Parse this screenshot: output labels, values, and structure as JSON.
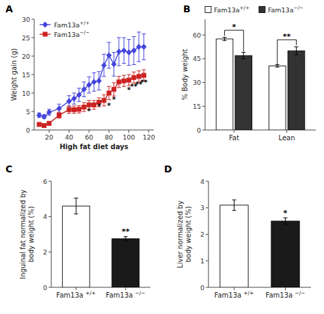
{
  "chart_data": [
    {
      "type": "line",
      "title": "A",
      "x": [
        10,
        15,
        20,
        30,
        40,
        45,
        50,
        55,
        60,
        65,
        70,
        75,
        80,
        85,
        90,
        95,
        100,
        105,
        110,
        115
      ],
      "xlabel": "High fat diet days",
      "ylabel": "Weight gain (g)",
      "xlim": [
        5,
        125
      ],
      "ylim": [
        0,
        30
      ],
      "xticks": [
        20,
        40,
        60,
        80,
        100,
        120
      ],
      "yticks": [
        0,
        5,
        10,
        15,
        20,
        25,
        30
      ],
      "grid": false,
      "legend": "upper left",
      "series": [
        {
          "name": "Fam13a+/+",
          "color": "#4444DD",
          "marker": "diamond",
          "values": [
            4.0,
            3.6,
            4.8,
            5.8,
            7.8,
            8.5,
            9.5,
            11.0,
            12.2,
            13.0,
            13.3,
            17.5,
            20.2,
            17.8,
            21.2,
            21.5,
            21.0,
            21.5,
            22.5,
            22.5
          ],
          "errors": [
            0.6,
            0.5,
            0.8,
            1.2,
            1.5,
            1.5,
            1.8,
            2.0,
            2.2,
            2.5,
            2.5,
            3.0,
            3.5,
            3.2,
            3.8,
            3.5,
            3.5,
            3.8,
            4.0,
            3.5
          ]
        },
        {
          "name": "Fam13a−/−",
          "color": "#CC2222",
          "marker": "square",
          "values": [
            1.5,
            1.2,
            1.8,
            4.0,
            5.5,
            5.5,
            5.6,
            6.2,
            6.8,
            6.8,
            7.5,
            8.0,
            10.0,
            11.0,
            13.0,
            13.3,
            13.5,
            14.2,
            14.5,
            14.8
          ],
          "errors": [
            0.4,
            0.3,
            0.5,
            0.8,
            1.0,
            1.0,
            1.0,
            1.2,
            1.2,
            1.2,
            1.2,
            1.5,
            1.8,
            1.8,
            1.5,
            1.5,
            1.5,
            1.5,
            1.5,
            1.5
          ]
        }
      ],
      "annotations": [
        {
          "x": 60,
          "y": 4.2,
          "text": "*"
        },
        {
          "x": 70,
          "y": 5.5,
          "text": "*"
        },
        {
          "x": 80,
          "y": 5.8,
          "text": "*"
        },
        {
          "x": 85,
          "y": 7.5,
          "text": "*"
        },
        {
          "x": 100,
          "y": 10.0,
          "text": "*"
        },
        {
          "x": 105,
          "y": 11.0,
          "text": "**"
        },
        {
          "x": 110,
          "y": 11.5,
          "text": "**"
        },
        {
          "x": 115,
          "y": 12.0,
          "text": "**"
        }
      ]
    },
    {
      "type": "bar",
      "title": "B",
      "categories": [
        "Fat",
        "Lean"
      ],
      "ylabel": "% Body weight",
      "ylim": [
        0,
        70
      ],
      "yticks": [
        0,
        15,
        30,
        45,
        60
      ],
      "grid": false,
      "legend": "upper left",
      "series": [
        {
          "name": "Fam13a+/+",
          "color": "white",
          "values": [
            57.5,
            40.5
          ],
          "errors": [
            1.0,
            0.8
          ]
        },
        {
          "name": "Fam13a−/−",
          "color": "#333333",
          "values": [
            47.0,
            50.0
          ],
          "errors": [
            2.0,
            2.5
          ]
        }
      ],
      "annotations": [
        {
          "text": "*",
          "category": "Fat",
          "y": 63,
          "y_left": 59.5,
          "y_right": 49.5
        },
        {
          "text": "**",
          "category": "Lean",
          "y": 57,
          "y_left": 41.5,
          "y_right": 53.5
        }
      ]
    },
    {
      "type": "bar",
      "title": "C",
      "categories": [
        "Fam13a +/+",
        "Fam13a −/−"
      ],
      "values": [
        4.6,
        2.75
      ],
      "errors": [
        0.45,
        0.12
      ],
      "colors": [
        "white",
        "#1a1a1a"
      ],
      "ylabel": "Inguinal fat normalized by\nbody weight (%)",
      "ylim": [
        0,
        6
      ],
      "yticks": [
        0,
        2,
        4,
        6
      ],
      "grid": false,
      "annotations": [
        {
          "text": "**",
          "category": "Fam13a −/−",
          "y": 2.95
        }
      ]
    },
    {
      "type": "bar",
      "title": "D",
      "categories": [
        "Fam13a +/+",
        "Fam13a −/−"
      ],
      "values": [
        3.1,
        2.5
      ],
      "errors": [
        0.2,
        0.12
      ],
      "colors": [
        "white",
        "#1a1a1a"
      ],
      "ylabel": "Liver normalized by\nbody weight (%)",
      "ylim": [
        0,
        4
      ],
      "yticks": [
        0,
        1,
        2,
        3,
        4
      ],
      "grid": false,
      "annotations": [
        {
          "text": "*",
          "category": "Fam13a −/−",
          "y": 2.67
        }
      ]
    }
  ]
}
